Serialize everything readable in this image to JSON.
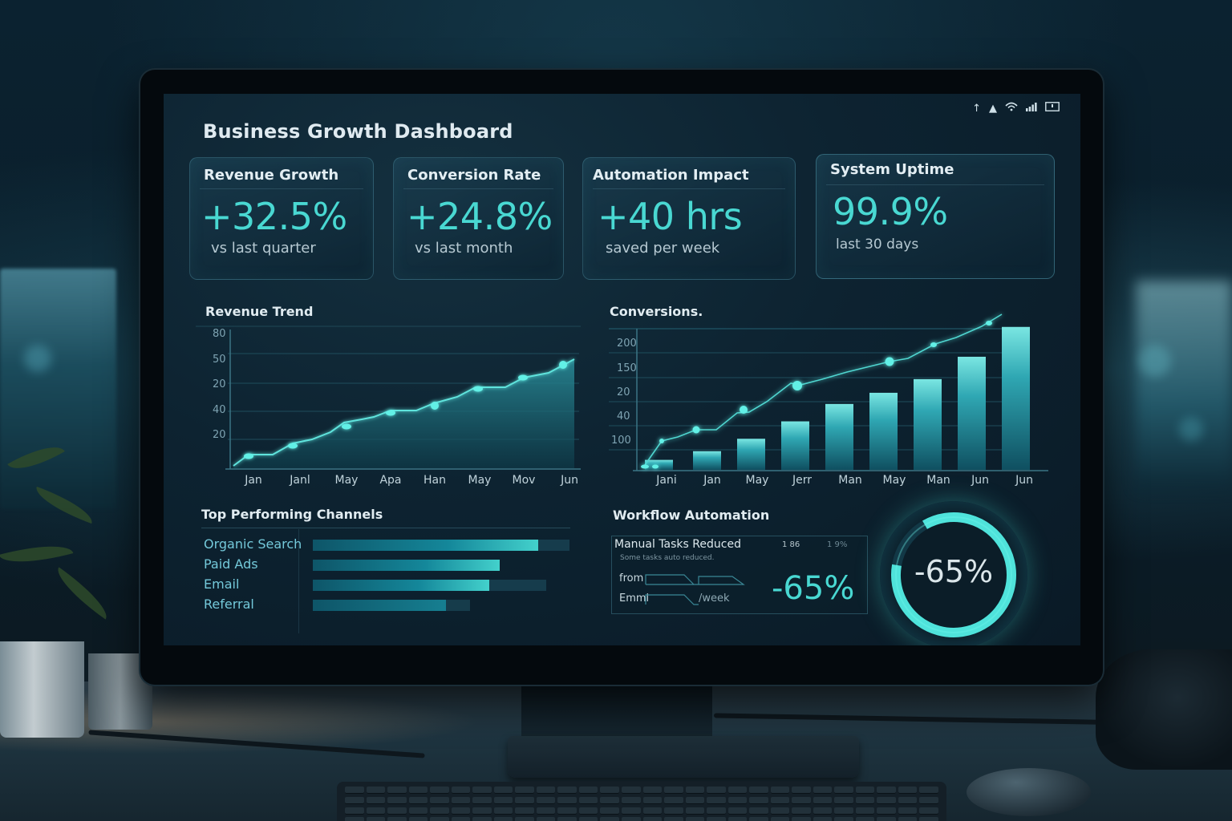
{
  "dashboard": {
    "title": "Business Growth Dashboard",
    "status_icons": [
      "arrow-up-icon",
      "notification-icon",
      "wifi-icon",
      "signal-icon",
      "battery-icon"
    ]
  },
  "kpis": [
    {
      "label": "Revenue Growth",
      "value": "+32.5%",
      "sub": "vs last quarter"
    },
    {
      "label": "Conversion Rate",
      "value": "+24.8%",
      "sub": "vs last month"
    },
    {
      "label": "Automation Impact",
      "value": "+40 hrs",
      "sub": "saved per week"
    },
    {
      "label": "System Uptime",
      "value": "99.9%",
      "sub": "last 30 days"
    }
  ],
  "revenue_trend": {
    "title": "Revenue Trend",
    "y_ticks": [
      "80",
      "50",
      "20",
      "40",
      "20"
    ],
    "x_labels": [
      "Jan",
      "Janl",
      "May",
      "Apa",
      "Han",
      "May",
      "Mov",
      "Jun"
    ]
  },
  "conversions": {
    "title": "Conversions.",
    "y_ticks": [
      "200",
      "150",
      "20",
      "40",
      "100"
    ],
    "x_labels": [
      "Jani",
      "Jan",
      "May",
      "Jerr",
      "Man",
      "May",
      "Man",
      "Jun",
      "Jun"
    ]
  },
  "channels": {
    "title": "Top Performing Channels",
    "items": [
      {
        "name": "Organic Search",
        "value": 88,
        "track": 100
      },
      {
        "name": "Paid Ads",
        "value": 73,
        "track": 100
      },
      {
        "name": "Email",
        "value": 69,
        "track": 91
      },
      {
        "name": "Referral",
        "value": 52,
        "track": 61
      }
    ]
  },
  "workflow": {
    "title": "Workflow Automation",
    "box_title": "Manual Tasks Reduced",
    "meta_1": "1 86",
    "meta_2": "1 9%",
    "description": "Some tasks auto reduced.",
    "from_label": "from",
    "emm_label": "Emmi",
    "week_label": "/week",
    "big_value": "-65%",
    "gauge_value": "-65%",
    "gauge_percent": 65
  },
  "chart_data": [
    {
      "type": "area",
      "title": "Revenue Trend",
      "categories": [
        "Jan",
        "Janl",
        "May",
        "Apa",
        "Han",
        "May",
        "Mov",
        "Jun"
      ],
      "values": [
        5,
        12,
        20,
        27,
        32,
        41,
        46,
        52
      ],
      "y_tick_labels": [
        "80",
        "50",
        "20",
        "40",
        "20"
      ],
      "grid": true,
      "legend": "none"
    },
    {
      "type": "bar",
      "title": "Conversions.",
      "categories": [
        "Jani",
        "Jan",
        "May",
        "Jerr",
        "Man",
        "May",
        "Man",
        "Jun",
        "Jun"
      ],
      "series": [
        {
          "name": "bars",
          "values": [
            8,
            15,
            25,
            39,
            53,
            62,
            73,
            91,
            115
          ]
        },
        {
          "name": "line",
          "values": [
            25,
            42,
            58,
            85,
            92,
            110,
            125,
            147,
            160
          ]
        }
      ],
      "y_tick_labels": [
        "200",
        "150",
        "20",
        "40",
        "100"
      ],
      "grid": true,
      "legend": "none"
    },
    {
      "type": "bar",
      "title": "Top Performing Channels",
      "categories": [
        "Organic Search",
        "Paid Ads",
        "Email",
        "Referral"
      ],
      "values": [
        88,
        73,
        69,
        52
      ],
      "orientation": "horizontal"
    }
  ],
  "colors": {
    "accent": "#49d8d2",
    "screen_bg": "#0d2331",
    "text": "#e1ecf1",
    "muted": "#b6c9d2"
  }
}
